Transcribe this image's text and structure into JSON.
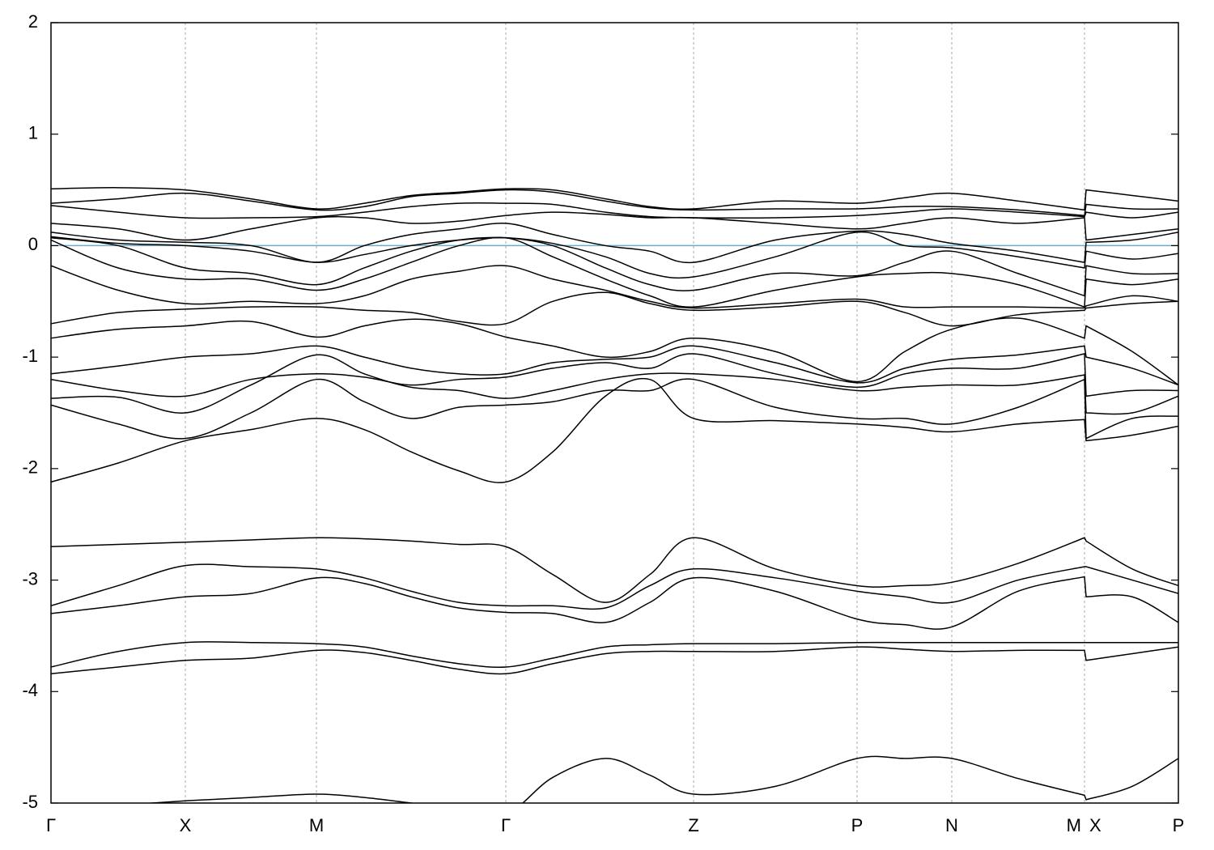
{
  "chart_data": {
    "type": "line",
    "x": [
      0,
      83,
      166,
      247,
      328,
      387,
      445,
      504,
      562,
      620,
      685,
      740,
      794,
      895,
      996,
      1055,
      1113,
      1195,
      1277,
      1279,
      1336,
      1393
    ],
    "xlim": [
      0,
      1393
    ],
    "xticks": [
      {
        "value": 0,
        "label": "Γ"
      },
      {
        "value": 166,
        "label": "X"
      },
      {
        "value": 328,
        "label": "M"
      },
      {
        "value": 562,
        "label": "Γ"
      },
      {
        "value": 794,
        "label": "Z"
      },
      {
        "value": 996,
        "label": "P"
      },
      {
        "value": 1113,
        "label": "N"
      },
      {
        "value": 1277,
        "label": "M"
      },
      {
        "value": 1279,
        "label": "X"
      },
      {
        "value": 1393,
        "label": "P"
      }
    ],
    "ylim": [
      -5,
      2
    ],
    "yticks": [
      -5,
      -4,
      -3,
      -2,
      -1,
      0,
      1,
      2
    ],
    "grid": true,
    "line_color": "#000000",
    "hlines": [
      {
        "value": 0,
        "color": "#6aafc6"
      }
    ],
    "series": [
      {
        "values": [
          -5.05,
          -5.02,
          -4.98,
          -4.95,
          -4.92,
          -4.95,
          -5.0,
          -5.05,
          -5.1,
          -4.77,
          -4.6,
          -4.75,
          -4.92,
          -4.85,
          -4.6,
          -4.6,
          -4.6,
          -4.78,
          -4.93,
          -4.97,
          -4.85,
          -4.6
        ]
      },
      {
        "values": [
          -3.84,
          -3.78,
          -3.72,
          -3.7,
          -3.63,
          -3.65,
          -3.72,
          -3.8,
          -3.84,
          -3.75,
          -3.66,
          -3.64,
          -3.64,
          -3.64,
          -3.6,
          -3.62,
          -3.64,
          -3.63,
          -3.63,
          -3.72,
          -3.66,
          -3.6
        ]
      },
      {
        "values": [
          -3.78,
          -3.64,
          -3.56,
          -3.56,
          -3.57,
          -3.6,
          -3.68,
          -3.75,
          -3.78,
          -3.7,
          -3.6,
          -3.58,
          -3.57,
          -3.57,
          -3.56,
          -3.56,
          -3.56,
          -3.56,
          -3.56,
          -3.56,
          -3.56,
          -3.56
        ]
      },
      {
        "values": [
          -3.3,
          -3.23,
          -3.15,
          -3.12,
          -2.98,
          -3.03,
          -3.15,
          -3.25,
          -3.29,
          -3.3,
          -3.38,
          -3.2,
          -2.98,
          -3.1,
          -3.35,
          -3.4,
          -3.42,
          -3.1,
          -2.97,
          -3.15,
          -3.15,
          -3.38
        ]
      },
      {
        "values": [
          -3.23,
          -3.05,
          -2.87,
          -2.88,
          -2.9,
          -2.98,
          -3.1,
          -3.2,
          -3.23,
          -3.23,
          -3.25,
          -3.05,
          -2.9,
          -2.98,
          -3.1,
          -3.15,
          -3.2,
          -3.0,
          -2.88,
          -2.88,
          -3.0,
          -3.12
        ]
      },
      {
        "values": [
          -2.7,
          -2.68,
          -2.66,
          -2.64,
          -2.62,
          -2.63,
          -2.65,
          -2.68,
          -2.7,
          -2.95,
          -3.2,
          -2.95,
          -2.62,
          -2.9,
          -3.05,
          -3.05,
          -3.02,
          -2.85,
          -2.62,
          -2.65,
          -2.9,
          -3.05
        ]
      },
      {
        "values": [
          -2.12,
          -1.95,
          -1.75,
          -1.65,
          -1.55,
          -1.65,
          -1.85,
          -2.02,
          -2.12,
          -1.85,
          -1.35,
          -1.2,
          -1.55,
          -1.57,
          -1.6,
          -1.63,
          -1.67,
          -1.6,
          -1.56,
          -1.75,
          -1.7,
          -1.62
        ]
      },
      {
        "values": [
          -1.43,
          -1.6,
          -1.73,
          -1.5,
          -1.2,
          -1.4,
          -1.55,
          -1.45,
          -1.43,
          -1.4,
          -1.3,
          -1.3,
          -1.2,
          -1.45,
          -1.55,
          -1.55,
          -1.6,
          -1.45,
          -1.2,
          -1.73,
          -1.55,
          -1.53
        ]
      },
      {
        "values": [
          -1.37,
          -1.36,
          -1.5,
          -1.25,
          -0.98,
          -1.15,
          -1.27,
          -1.3,
          -1.37,
          -1.3,
          -1.2,
          -1.15,
          -1.15,
          -1.2,
          -1.3,
          -1.27,
          -1.25,
          -1.25,
          -1.16,
          -1.5,
          -1.5,
          -1.35
        ]
      },
      {
        "values": [
          -1.2,
          -1.3,
          -1.35,
          -1.2,
          -1.15,
          -1.18,
          -1.25,
          -1.2,
          -1.18,
          -1.1,
          -1.05,
          -1.1,
          -0.97,
          -1.15,
          -1.27,
          -1.15,
          -1.1,
          -1.1,
          -0.97,
          -1.35,
          -1.3,
          -1.3
        ]
      },
      {
        "values": [
          -1.15,
          -1.08,
          -1.0,
          -0.97,
          -0.9,
          -1.0,
          -1.1,
          -1.15,
          -1.15,
          -1.05,
          -1.02,
          -1.0,
          -0.9,
          -1.05,
          -1.23,
          -1.1,
          -1.02,
          -0.98,
          -0.9,
          -1.0,
          -1.1,
          -1.25
        ]
      },
      {
        "values": [
          -0.83,
          -0.75,
          -0.72,
          -0.68,
          -0.82,
          -0.72,
          -0.66,
          -0.7,
          -0.82,
          -0.9,
          -1.0,
          -0.95,
          -0.83,
          -0.95,
          -1.22,
          -0.95,
          -0.75,
          -0.65,
          -0.83,
          -0.72,
          -0.95,
          -1.25
        ]
      },
      {
        "values": [
          -0.7,
          -0.6,
          -0.57,
          -0.55,
          -0.55,
          -0.58,
          -0.6,
          -0.68,
          -0.7,
          -0.5,
          -0.42,
          -0.52,
          -0.58,
          -0.55,
          -0.5,
          -0.6,
          -0.72,
          -0.62,
          -0.58,
          -0.56,
          -0.52,
          -0.5
        ]
      },
      {
        "values": [
          -0.18,
          -0.4,
          -0.52,
          -0.5,
          -0.52,
          -0.45,
          -0.3,
          -0.23,
          -0.18,
          -0.3,
          -0.4,
          -0.5,
          -0.56,
          -0.52,
          -0.48,
          -0.55,
          -0.55,
          -0.55,
          -0.56,
          -0.54,
          -0.45,
          -0.5
        ]
      },
      {
        "values": [
          0.05,
          -0.2,
          -0.3,
          -0.3,
          -0.4,
          -0.3,
          -0.15,
          0.0,
          0.07,
          -0.1,
          -0.3,
          -0.45,
          -0.55,
          -0.4,
          -0.28,
          -0.25,
          -0.25,
          -0.35,
          -0.55,
          -0.3,
          -0.35,
          -0.3
        ]
      },
      {
        "values": [
          0.07,
          0.0,
          -0.2,
          -0.25,
          -0.35,
          -0.2,
          -0.05,
          0.05,
          0.07,
          0.0,
          -0.2,
          -0.35,
          -0.4,
          -0.25,
          -0.27,
          -0.15,
          -0.05,
          -0.25,
          -0.45,
          -0.18,
          -0.25,
          -0.25
        ]
      },
      {
        "values": [
          0.08,
          0.02,
          0.0,
          -0.05,
          -0.15,
          -0.08,
          0.0,
          0.05,
          0.07,
          0.02,
          -0.1,
          -0.25,
          -0.28,
          -0.1,
          0.12,
          0.0,
          -0.02,
          -0.1,
          -0.2,
          -0.05,
          -0.12,
          -0.07
        ]
      },
      {
        "values": [
          0.12,
          0.05,
          0.03,
          0.0,
          -0.15,
          0.0,
          0.1,
          0.15,
          0.2,
          0.1,
          0.0,
          -0.05,
          -0.15,
          0.05,
          0.13,
          0.1,
          0.02,
          -0.05,
          -0.15,
          0.03,
          0.05,
          0.12
        ]
      },
      {
        "values": [
          0.2,
          0.15,
          0.05,
          0.15,
          0.25,
          0.25,
          0.2,
          0.22,
          0.27,
          0.3,
          0.28,
          0.25,
          0.25,
          0.2,
          0.15,
          0.2,
          0.25,
          0.2,
          0.25,
          0.05,
          0.1,
          0.15
        ]
      },
      {
        "values": [
          0.36,
          0.3,
          0.25,
          0.25,
          0.26,
          0.3,
          0.35,
          0.38,
          0.38,
          0.37,
          0.3,
          0.26,
          0.25,
          0.25,
          0.27,
          0.3,
          0.33,
          0.3,
          0.26,
          0.3,
          0.25,
          0.3
        ]
      },
      {
        "values": [
          0.38,
          0.42,
          0.47,
          0.4,
          0.32,
          0.35,
          0.44,
          0.47,
          0.5,
          0.48,
          0.4,
          0.34,
          0.32,
          0.33,
          0.33,
          0.35,
          0.35,
          0.32,
          0.27,
          0.37,
          0.33,
          0.33
        ]
      },
      {
        "values": [
          0.51,
          0.52,
          0.5,
          0.42,
          0.33,
          0.38,
          0.45,
          0.48,
          0.51,
          0.5,
          0.42,
          0.35,
          0.33,
          0.4,
          0.38,
          0.43,
          0.47,
          0.4,
          0.32,
          0.5,
          0.45,
          0.4
        ]
      }
    ]
  }
}
